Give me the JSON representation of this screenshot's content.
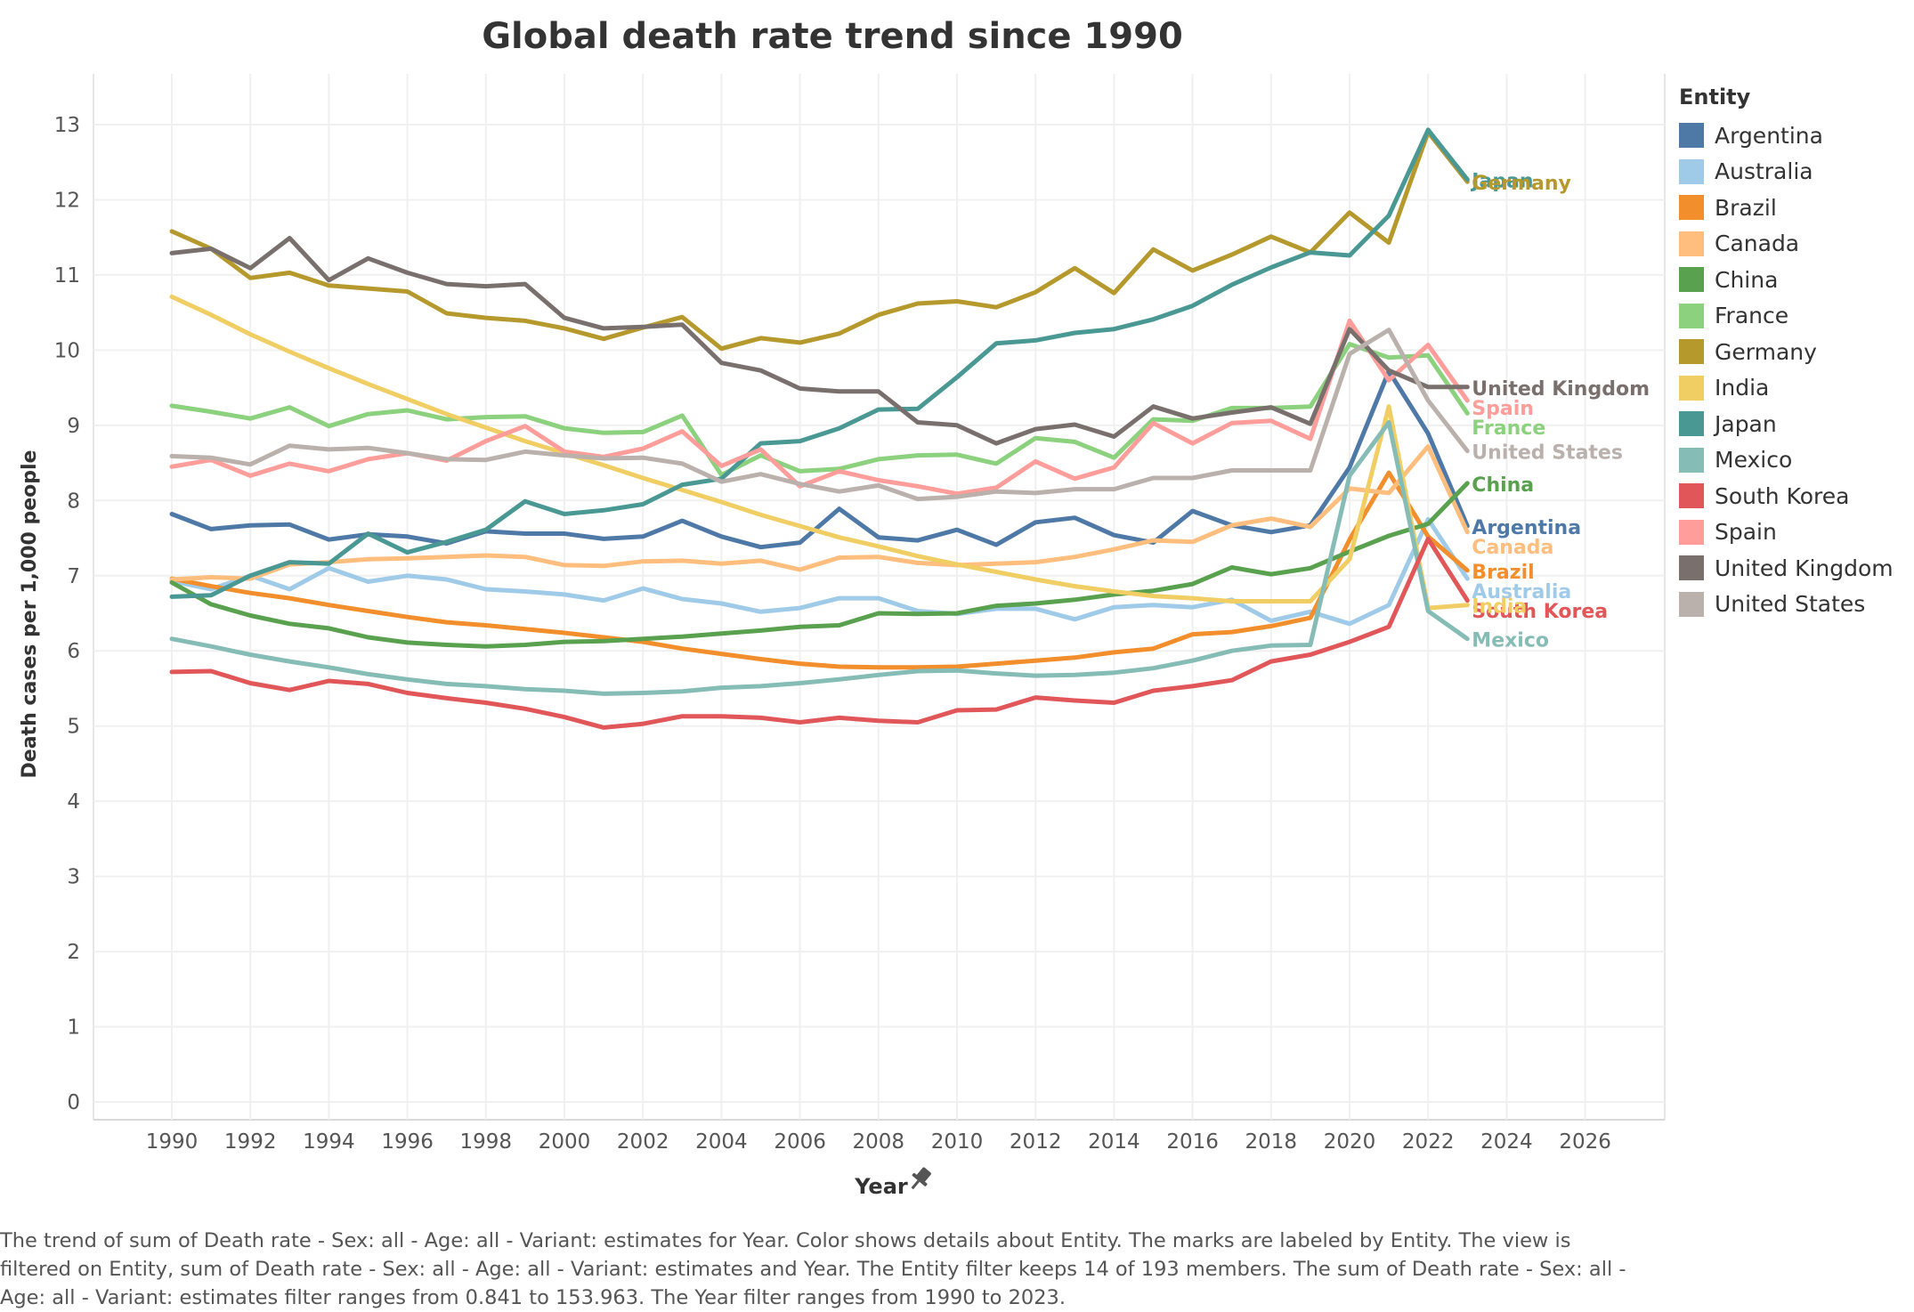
{
  "chart_data": {
    "type": "line",
    "title": "Global death rate trend since 1990",
    "xlabel": "Year",
    "ylabel": "Death cases per 1,000 people",
    "xlim": [
      1990,
      2026
    ],
    "ylim": [
      0,
      13
    ],
    "x_ticks": [
      1990,
      1992,
      1994,
      1996,
      1998,
      2000,
      2002,
      2004,
      2006,
      2008,
      2010,
      2012,
      2014,
      2016,
      2018,
      2020,
      2022,
      2024,
      2026
    ],
    "y_ticks": [
      0,
      1,
      2,
      3,
      4,
      5,
      6,
      7,
      8,
      9,
      10,
      11,
      12,
      13
    ],
    "grid": true,
    "legend_title": "Entity",
    "legend_position": "right",
    "x": [
      1990,
      1991,
      1992,
      1993,
      1994,
      1995,
      1996,
      1997,
      1998,
      1999,
      2000,
      2001,
      2002,
      2003,
      2004,
      2005,
      2006,
      2007,
      2008,
      2009,
      2010,
      2011,
      2012,
      2013,
      2014,
      2015,
      2016,
      2017,
      2018,
      2019,
      2020,
      2021,
      2022,
      2023
    ],
    "series": [
      {
        "name": "Argentina",
        "color": "#4e79a7",
        "values": [
          7.82,
          7.62,
          7.67,
          7.68,
          7.48,
          7.55,
          7.52,
          7.43,
          7.59,
          7.56,
          7.56,
          7.49,
          7.52,
          7.73,
          7.52,
          7.38,
          7.44,
          7.89,
          7.51,
          7.47,
          7.61,
          7.41,
          7.71,
          7.77,
          7.54,
          7.44,
          7.86,
          7.67,
          7.58,
          7.67,
          8.44,
          9.72,
          8.89,
          7.66
        ]
      },
      {
        "name": "Australia",
        "color": "#a0cbe8",
        "values": [
          6.93,
          6.82,
          7.0,
          6.82,
          7.1,
          6.92,
          7.0,
          6.95,
          6.82,
          6.79,
          6.75,
          6.67,
          6.83,
          6.69,
          6.63,
          6.52,
          6.57,
          6.7,
          6.7,
          6.53,
          6.49,
          6.56,
          6.56,
          6.42,
          6.58,
          6.61,
          6.58,
          6.68,
          6.4,
          6.52,
          6.36,
          6.61,
          7.75,
          6.96
        ]
      },
      {
        "name": "Brazil",
        "color": "#f28e2b",
        "values": [
          6.96,
          6.86,
          6.77,
          6.7,
          6.61,
          6.53,
          6.45,
          6.38,
          6.34,
          6.29,
          6.24,
          6.18,
          6.12,
          6.03,
          5.96,
          5.89,
          5.83,
          5.79,
          5.78,
          5.78,
          5.79,
          5.83,
          5.87,
          5.91,
          5.98,
          6.03,
          6.22,
          6.25,
          6.33,
          6.44,
          7.48,
          8.37,
          7.52,
          7.07
        ]
      },
      {
        "name": "Canada",
        "color": "#ffbe7d",
        "values": [
          6.95,
          6.98,
          6.96,
          7.15,
          7.18,
          7.22,
          7.23,
          7.25,
          7.27,
          7.25,
          7.14,
          7.13,
          7.19,
          7.2,
          7.16,
          7.2,
          7.08,
          7.24,
          7.25,
          7.17,
          7.14,
          7.16,
          7.18,
          7.25,
          7.35,
          7.47,
          7.45,
          7.67,
          7.76,
          7.65,
          8.16,
          8.1,
          8.72,
          7.58
        ]
      },
      {
        "name": "China",
        "color": "#59a14f",
        "values": [
          6.91,
          6.62,
          6.47,
          6.36,
          6.3,
          6.18,
          6.11,
          6.08,
          6.06,
          6.08,
          6.12,
          6.13,
          6.16,
          6.19,
          6.23,
          6.27,
          6.32,
          6.34,
          6.5,
          6.49,
          6.5,
          6.6,
          6.63,
          6.68,
          6.75,
          6.8,
          6.89,
          7.11,
          7.02,
          7.1,
          7.32,
          7.53,
          7.69,
          8.23
        ]
      },
      {
        "name": "France",
        "color": "#8cd17d",
        "values": [
          9.26,
          9.18,
          9.09,
          9.24,
          8.99,
          9.15,
          9.2,
          9.08,
          9.11,
          9.12,
          8.96,
          8.9,
          8.91,
          9.13,
          8.34,
          8.6,
          8.39,
          8.42,
          8.55,
          8.6,
          8.61,
          8.49,
          8.83,
          8.78,
          8.57,
          9.08,
          9.06,
          9.23,
          9.23,
          9.25,
          10.08,
          9.9,
          9.93,
          9.16
        ]
      },
      {
        "name": "Germany",
        "color": "#b6992d",
        "values": [
          11.58,
          11.35,
          10.96,
          11.03,
          10.86,
          10.82,
          10.78,
          10.49,
          10.43,
          10.39,
          10.29,
          10.15,
          10.3,
          10.44,
          10.02,
          10.16,
          10.1,
          10.22,
          10.47,
          10.62,
          10.65,
          10.57,
          10.77,
          11.09,
          10.76,
          11.34,
          11.06,
          11.27,
          11.51,
          11.3,
          11.83,
          11.43,
          12.9,
          12.24
        ]
      },
      {
        "name": "India",
        "color": "#f1ce63",
        "values": [
          10.71,
          10.47,
          10.21,
          9.98,
          9.76,
          9.55,
          9.35,
          9.15,
          8.97,
          8.79,
          8.63,
          8.47,
          8.3,
          8.14,
          7.98,
          7.81,
          7.66,
          7.51,
          7.39,
          7.26,
          7.15,
          7.05,
          6.95,
          6.86,
          6.79,
          6.73,
          6.7,
          6.66,
          6.66,
          6.66,
          7.22,
          9.25,
          6.57,
          6.61
        ]
      },
      {
        "name": "Japan",
        "color": "#499894",
        "values": [
          6.72,
          6.74,
          7.0,
          7.18,
          7.16,
          7.56,
          7.31,
          7.45,
          7.61,
          7.99,
          7.82,
          7.87,
          7.95,
          8.21,
          8.29,
          8.76,
          8.79,
          8.96,
          9.21,
          9.22,
          9.64,
          10.09,
          10.13,
          10.23,
          10.28,
          10.41,
          10.59,
          10.87,
          11.1,
          11.3,
          11.26,
          11.79,
          12.93,
          12.27
        ]
      },
      {
        "name": "Mexico",
        "color": "#86bcb6",
        "values": [
          6.16,
          6.06,
          5.95,
          5.86,
          5.78,
          5.69,
          5.62,
          5.56,
          5.53,
          5.49,
          5.47,
          5.43,
          5.44,
          5.46,
          5.51,
          5.53,
          5.57,
          5.62,
          5.68,
          5.73,
          5.74,
          5.7,
          5.67,
          5.68,
          5.71,
          5.77,
          5.87,
          6.0,
          6.07,
          6.08,
          8.33,
          9.04,
          6.53,
          6.16
        ]
      },
      {
        "name": "South Korea",
        "color": "#e15759",
        "values": [
          5.72,
          5.73,
          5.57,
          5.48,
          5.6,
          5.56,
          5.44,
          5.37,
          5.31,
          5.23,
          5.12,
          4.98,
          5.03,
          5.13,
          5.13,
          5.11,
          5.05,
          5.11,
          5.07,
          5.05,
          5.21,
          5.22,
          5.38,
          5.34,
          5.31,
          5.47,
          5.53,
          5.61,
          5.86,
          5.95,
          6.12,
          6.32,
          7.49,
          6.67
        ]
      },
      {
        "name": "Spain",
        "color": "#ff9d9a",
        "values": [
          8.45,
          8.54,
          8.33,
          8.49,
          8.39,
          8.55,
          8.63,
          8.53,
          8.79,
          8.99,
          8.65,
          8.58,
          8.69,
          8.92,
          8.46,
          8.68,
          8.19,
          8.39,
          8.27,
          8.19,
          8.09,
          8.17,
          8.52,
          8.29,
          8.44,
          9.03,
          8.76,
          9.03,
          9.06,
          8.82,
          10.39,
          9.6,
          10.07,
          9.33
        ]
      },
      {
        "name": "United Kingdom",
        "color": "#79706e",
        "values": [
          11.29,
          11.35,
          11.09,
          11.49,
          10.93,
          11.22,
          11.03,
          10.88,
          10.85,
          10.88,
          10.43,
          10.29,
          10.31,
          10.34,
          9.83,
          9.73,
          9.49,
          9.45,
          9.45,
          9.04,
          9.0,
          8.76,
          8.95,
          9.01,
          8.85,
          9.25,
          9.09,
          9.17,
          9.24,
          9.02,
          10.28,
          9.73,
          9.51,
          9.51
        ]
      },
      {
        "name": "United States",
        "color": "#bab0ac",
        "values": [
          8.59,
          8.57,
          8.48,
          8.73,
          8.68,
          8.7,
          8.63,
          8.55,
          8.54,
          8.65,
          8.6,
          8.56,
          8.57,
          8.49,
          8.25,
          8.35,
          8.22,
          8.12,
          8.2,
          8.02,
          8.05,
          8.12,
          8.1,
          8.15,
          8.15,
          8.3,
          8.3,
          8.4,
          8.4,
          8.4,
          9.95,
          10.27,
          9.33,
          8.66
        ]
      }
    ],
    "end_labels": [
      {
        "name": "Japan",
        "color": "#499894"
      },
      {
        "name": "Germany",
        "color": "#b6992d"
      },
      {
        "name": "United Kingdom",
        "color": "#79706e"
      },
      {
        "name": "Spain",
        "color": "#ff9d9a"
      },
      {
        "name": "France",
        "color": "#8cd17d"
      },
      {
        "name": "United States",
        "color": "#bab0ac"
      },
      {
        "name": "China",
        "color": "#59a14f"
      },
      {
        "name": "Canada",
        "color": "#ffbe7d"
      },
      {
        "name": "Argentina",
        "color": "#4e79a7"
      },
      {
        "name": "Brazil",
        "color": "#f28e2b"
      },
      {
        "name": "Australia",
        "color": "#a0cbe8"
      },
      {
        "name": "India",
        "color": "#f1ce63"
      },
      {
        "name": "South Korea",
        "color": "#e15759"
      },
      {
        "name": "Mexico",
        "color": "#86bcb6"
      }
    ]
  },
  "caption": "The trend of sum of Death rate - Sex: all - Age: all - Variant: estimates for Year.  Color shows details about Entity.  The marks are labeled by Entity. The view is filtered on Entity, sum of Death rate - Sex: all - Age: all - Variant: estimates and Year. The Entity filter keeps 14 of 193 members. The sum of Death rate - Sex: all - Age: all - Variant: estimates filter ranges from 0.841 to 153.963. The Year filter ranges from 1990 to 2023.",
  "pin_icon": "pin-icon"
}
